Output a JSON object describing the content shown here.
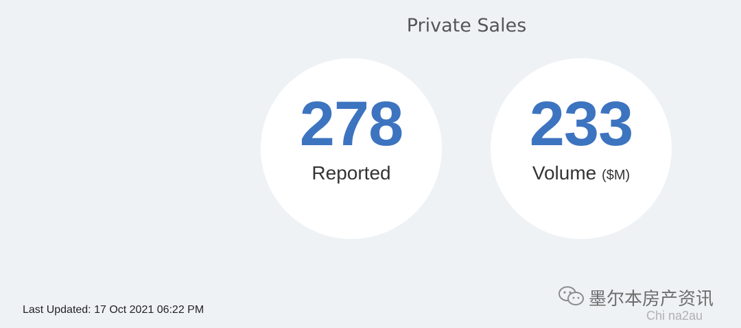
{
  "header": {
    "title": "Private Sales"
  },
  "stats": [
    {
      "value": "278",
      "label": "Reported"
    },
    {
      "value": "233",
      "label": "Volume",
      "unit": "($M)"
    }
  ],
  "footer": {
    "last_updated": "Last Updated: 17 Oct 2021 06:22 PM"
  },
  "watermark": {
    "name": "墨尔本房产资讯",
    "id": "Chi na2au"
  }
}
